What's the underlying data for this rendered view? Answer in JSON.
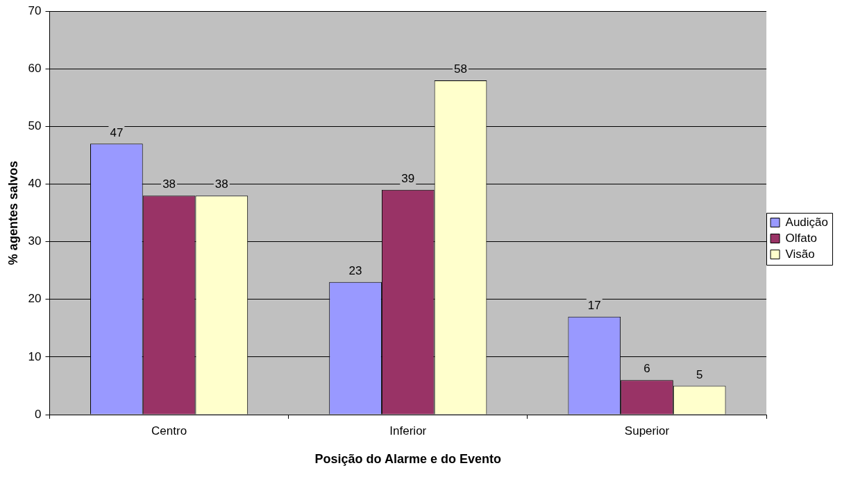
{
  "chart_data": {
    "type": "bar",
    "xlabel": "Posição do Alarme e do Evento",
    "ylabel": "% agentes salvos",
    "categories": [
      "Centro",
      "Inferior",
      "Superior"
    ],
    "series": [
      {
        "name": "Audição",
        "color": "#9999ff",
        "values": [
          47,
          23,
          17
        ]
      },
      {
        "name": "Olfato",
        "color": "#993366",
        "values": [
          38,
          39,
          6
        ]
      },
      {
        "name": "Visão",
        "color": "#ffffcc",
        "values": [
          38,
          58,
          5
        ]
      }
    ],
    "ylim": [
      0,
      70
    ],
    "yticks": [
      0,
      10,
      20,
      30,
      40,
      50,
      60,
      70
    ],
    "grid": "y",
    "legend": "right",
    "data_labels": true
  }
}
